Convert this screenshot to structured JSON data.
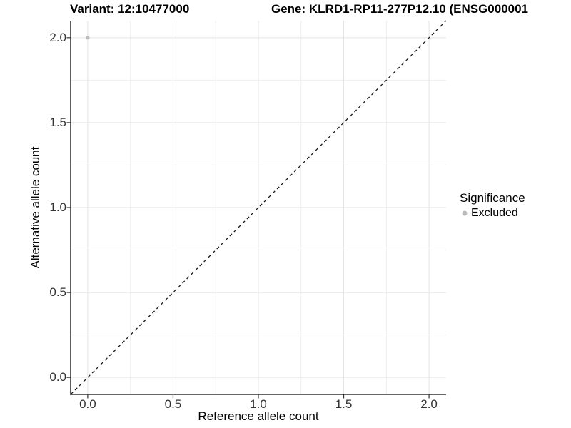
{
  "titles": {
    "variant": "Variant: 12:10477000",
    "gene": "Gene: KLRD1-RP11-277P12.10 (ENSG000001"
  },
  "legend": {
    "title": "Significance",
    "items": [
      {
        "label": "Excluded",
        "marker": "dot",
        "color": "#bdbdbd"
      }
    ]
  },
  "chart_data": {
    "type": "scatter",
    "title": "Variant: 12:10477000    Gene: KLRD1-RP11-277P12.10 (ENSG000001",
    "xlabel": "Reference allele count",
    "ylabel": "Alternative allele count",
    "xlim": [
      -0.1,
      2.1
    ],
    "ylim": [
      -0.1,
      2.1
    ],
    "x_ticks": [
      0.0,
      0.5,
      1.0,
      1.5,
      2.0
    ],
    "x_tick_labels": [
      "0.0",
      "0.5",
      "1.0",
      "1.5",
      "2.0"
    ],
    "y_ticks": [
      0.0,
      0.5,
      1.0,
      1.5,
      2.0
    ],
    "y_tick_labels": [
      "0.0",
      "0.5",
      "1.0",
      "1.5",
      "2.0"
    ],
    "minor_ticks": [
      0.25,
      0.75,
      1.25,
      1.75
    ],
    "grid": true,
    "legend_position": "right",
    "series": [
      {
        "name": "Excluded",
        "color": "#bdbdbd",
        "points": [
          {
            "x": 0.0,
            "y": 2.0
          }
        ]
      }
    ],
    "reference_line": {
      "slope": 1,
      "intercept": 0,
      "style": "dashed",
      "color": "#1a1a1a"
    }
  },
  "style": {
    "point_color": "#bdbdbd",
    "grid_major_color": "#e4e4e4",
    "grid_minor_color": "#eeeeee",
    "axis_line_color": "#333333",
    "tick_mark_color": "#333333",
    "tick_text_color": "#333333",
    "background": "#ffffff"
  }
}
